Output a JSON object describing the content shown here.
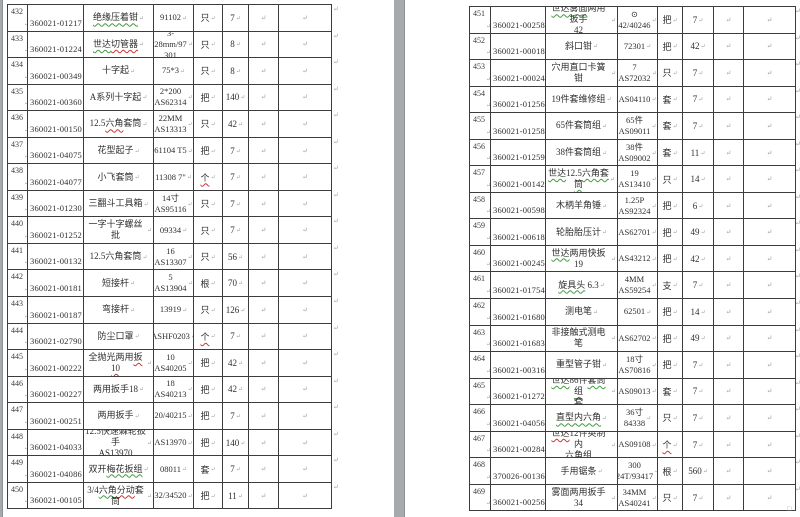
{
  "app": {
    "background_color": "#a7aaad",
    "page_color": "#ffffff",
    "table_border_color": "#3c3c3c",
    "text_color": "#2f2f2f",
    "formatting_mark_color": "#9aa1a8",
    "spellcheck_green": "#3f9b3f",
    "spellcheck_red": "#cc3333",
    "cell_end_marker": "↵",
    "end_of_page_marker": "□"
  },
  "table": {
    "columns": [
      "row-number",
      "item-code",
      "item-name",
      "spec-model",
      "unit",
      "quantity",
      "empty-1",
      "empty-2"
    ],
    "pages": [
      {
        "side": "left",
        "rows": [
          {
            "num": "432",
            "code": "360021-01217",
            "name": [
              [
                "绝缘压着钳",
                "g"
              ]
            ],
            "spec": [
              "91102"
            ],
            "unit": "只",
            "qty": "7"
          },
          {
            "num": "433",
            "code": "360021-01224",
            "name": [
              [
                "世达",
                "g"
              ],
              [
                "切管器",
                "r"
              ]
            ],
            "spec": [
              "3-28mm/97",
              "301"
            ],
            "unit": "只",
            "qty": "8"
          },
          {
            "num": "434",
            "code": "360021-00349",
            "name": [
              [
                "十字起",
                null
              ]
            ],
            "spec": [
              "75*3"
            ],
            "unit": "只",
            "qty": "8"
          },
          {
            "num": "435",
            "code": "360021-00360",
            "name": [
              [
                "A系列十字起",
                null
              ]
            ],
            "spec": [
              "2*200",
              "AS62314"
            ],
            "unit": "把",
            "qty": "140"
          },
          {
            "num": "436",
            "code": "360021-00150",
            "name": [
              [
                "12.5",
                null
              ],
              [
                "六角",
                "r"
              ],
              [
                "套筒",
                null
              ]
            ],
            "spec": [
              "22MM",
              "AS13313"
            ],
            "unit": "只",
            "qty": "42"
          },
          {
            "num": "437",
            "code": "360021-04075",
            "name": [
              [
                "花型起子",
                null
              ]
            ],
            "spec": [
              "61104  T5"
            ],
            "unit": "把",
            "qty": "7"
          },
          {
            "num": "438",
            "code": "360021-04077",
            "name": [
              [
                "小飞套筒",
                null
              ]
            ],
            "spec": [
              "11308 7\""
            ],
            "unit": "个",
            "unitMark": "r",
            "qty": "7"
          },
          {
            "num": "439",
            "code": "360021-01230",
            "name": [
              [
                "三翻斗工具箱",
                null
              ]
            ],
            "spec": [
              "14寸",
              "AS95116"
            ],
            "unit": "只",
            "qty": "7"
          },
          {
            "num": "440",
            "code": "360021-01252",
            "name": [
              [
                "一字十字螺丝批",
                null
              ]
            ],
            "spec": [
              "09334"
            ],
            "unit": "只",
            "qty": "7"
          },
          {
            "num": "441",
            "code": "360021-00132",
            "name": [
              [
                "12.5六角套筒",
                null
              ]
            ],
            "spec": [
              "16",
              "AS13307"
            ],
            "unit": "只",
            "qty": "56"
          },
          {
            "num": "442",
            "code": "360021-00181",
            "name": [
              [
                "短接杆",
                null
              ]
            ],
            "spec": [
              "5 AS13904"
            ],
            "unit": "根",
            "qty": "70"
          },
          {
            "num": "443",
            "code": "360021-00187",
            "name": [
              [
                "弯接杆",
                null
              ]
            ],
            "spec": [
              "13919"
            ],
            "unit": "只",
            "qty": "126"
          },
          {
            "num": "444",
            "code": "360021-02790",
            "name": [
              [
                "防尘口罩",
                null
              ]
            ],
            "spec": [
              "ASHF0203"
            ],
            "unit": "个",
            "unitMark": "r",
            "qty": "7"
          },
          {
            "num": "445",
            "code": "360021-00222",
            "name": [
              [
                "全抛光两用",
                null
              ],
              [
                "扳10",
                "r"
              ]
            ],
            "spec": [
              "10",
              "AS40205"
            ],
            "unit": "把",
            "qty": "42"
          },
          {
            "num": "446",
            "code": "360021-00227",
            "name": [
              [
                "两用扳手18",
                null
              ]
            ],
            "spec": [
              "18",
              "AS40213"
            ],
            "unit": "把",
            "qty": "42"
          },
          {
            "num": "447",
            "code": "360021-00251",
            "name": [
              [
                "两用扳手",
                null
              ]
            ],
            "spec": [
              "20/40215"
            ],
            "unit": "把",
            "qty": "7"
          },
          {
            "num": "448",
            "code": "360021-04033",
            "name": [
              [
                "12.5快速棘轮扳手\nAS13970",
                null
              ]
            ],
            "spec": [
              "AS13970"
            ],
            "unit": "把",
            "qty": "140"
          },
          {
            "num": "449",
            "code": "360021-04086",
            "name": [
              [
                "双开",
                null
              ],
              [
                "梅花扳组",
                "g"
              ]
            ],
            "spec": [
              "08011"
            ],
            "unit": "套",
            "qty": "7"
          },
          {
            "num": "450",
            "code": "360021-00105",
            "name": [
              [
                "3/4",
                null
              ],
              [
                "六角",
                "g"
              ],
              [
                "分动",
                "r"
              ],
              [
                "套筒",
                null
              ]
            ],
            "spec": [
              "32/34520"
            ],
            "unit": "把",
            "qty": "11"
          }
        ]
      },
      {
        "side": "right",
        "rows": [
          {
            "num": "451",
            "code": "360021-00258",
            "name": [
              [
                "世达雾面",
                "g"
              ],
              [
                "两用扳手\n42",
                null
              ]
            ],
            "spec": [
              "⊙",
              "42/40246"
            ],
            "unit": "把",
            "qty": "7"
          },
          {
            "num": "452",
            "code": "360021-00018",
            "name": [
              [
                "斜口钳",
                null
              ]
            ],
            "spec": [
              "72301"
            ],
            "unit": "把",
            "qty": "42"
          },
          {
            "num": "453",
            "code": "360021-00024",
            "name": [
              [
                "穴用直口卡簧钳",
                null
              ]
            ],
            "spec": [
              "7 AS72032"
            ],
            "unit": "只",
            "qty": "7"
          },
          {
            "num": "454",
            "code": "360021-01256",
            "name": [
              [
                "19件套维修组",
                null
              ]
            ],
            "spec": [
              "AS04110"
            ],
            "unit": "套",
            "qty": "7"
          },
          {
            "num": "455",
            "code": "360021-01258",
            "name": [
              [
                "65件套筒组",
                null
              ]
            ],
            "spec": [
              "65件",
              "AS09011"
            ],
            "unit": "套",
            "qty": "7"
          },
          {
            "num": "456",
            "code": "360021-01259",
            "name": [
              [
                "38件套筒组",
                null
              ]
            ],
            "spec": [
              "38件",
              "AS09002"
            ],
            "unit": "套",
            "qty": "11"
          },
          {
            "num": "457",
            "code": "360021-00142",
            "name": [
              [
                "世达",
                "g"
              ],
              [
                "12.5",
                null
              ],
              [
                "六角套\n筒",
                "g"
              ]
            ],
            "spec": [
              "19",
              "AS13410"
            ],
            "unit": "只",
            "qty": "14"
          },
          {
            "num": "458",
            "code": "360021-00598",
            "name": [
              [
                "木柄羊角锤",
                null
              ]
            ],
            "spec": [
              "1.25P",
              "AS92324"
            ],
            "unit": "把",
            "qty": "6"
          },
          {
            "num": "459",
            "code": "360021-00618",
            "name": [
              [
                "轮胎胎压计",
                null
              ]
            ],
            "spec": [
              "AS62701"
            ],
            "unit": "把",
            "qty": "49"
          },
          {
            "num": "460",
            "code": "360021-00245",
            "name": [
              [
                "世达",
                "g"
              ],
              [
                "两用快扳19",
                null
              ]
            ],
            "spec": [
              "AS43212"
            ],
            "unit": "把",
            "qty": "42"
          },
          {
            "num": "461",
            "code": "360021-01754",
            "name": [
              [
                "旋具头",
                "g"
              ],
              [
                " 6.3",
                null
              ]
            ],
            "spec": [
              "4MM",
              "AS59254"
            ],
            "unit": "支",
            "qty": "7"
          },
          {
            "num": "462",
            "code": "360021-01680",
            "name": [
              [
                "测电笔",
                null
              ]
            ],
            "spec": [
              "62501"
            ],
            "unit": "把",
            "qty": "14"
          },
          {
            "num": "463",
            "code": "360021-01683",
            "name": [
              [
                "非接触式测电笔",
                null
              ]
            ],
            "spec": [
              "AS62702"
            ],
            "unit": "把",
            "qty": "49"
          },
          {
            "num": "464",
            "code": "360021-00316",
            "name": [
              [
                "重型管子钳",
                null
              ]
            ],
            "spec": [
              "18寸",
              "AS70816"
            ],
            "unit": "把",
            "qty": "7"
          },
          {
            "num": "465",
            "code": "360021-01272",
            "name": [
              [
                "世达",
                "g"
              ],
              [
                "86件",
                null
              ],
              [
                "套筒组\n套",
                "g"
              ]
            ],
            "spec": [
              "AS09013"
            ],
            "unit": "套",
            "qty": "7"
          },
          {
            "num": "466",
            "code": "360021-04056",
            "name": [
              [
                "直型内六角",
                "g"
              ]
            ],
            "spec": [
              "36寸",
              "84338"
            ],
            "unit": "只",
            "qty": "7"
          },
          {
            "num": "467",
            "code": "360021-00284",
            "name": [
              [
                "世达",
                "r"
              ],
              [
                "12件英制内\n六角组",
                null
              ]
            ],
            "spec": [
              "AS09108"
            ],
            "unit": "个",
            "unitMark": "r",
            "qty": "7"
          },
          {
            "num": "468",
            "code": "370026-00136",
            "name": [
              [
                "手用锯条",
                null
              ]
            ],
            "spec": [
              "300",
              "24T/93417"
            ],
            "unit": "根",
            "qty": "560"
          },
          {
            "num": "469",
            "code": "360021-00256",
            "name": [
              [
                "雾面两用扳手34",
                null
              ]
            ],
            "spec": [
              "34MM",
              "AS40241"
            ],
            "unit": "只",
            "qty": "7"
          }
        ]
      }
    ]
  }
}
